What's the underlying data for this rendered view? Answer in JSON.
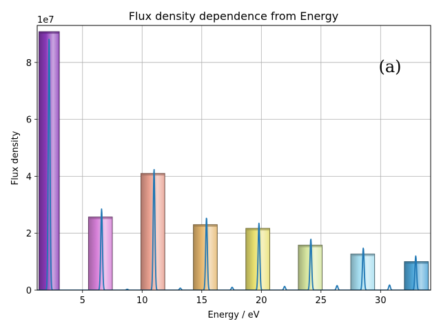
{
  "chart_data": {
    "type": "bar",
    "title": "Flux density dependence from Energy",
    "xlabel": "Energy / eV",
    "ylabel": "Flux density",
    "y_scale_label": "1e7",
    "panel_label": "(a)",
    "xlim": [
      1.2,
      34.2
    ],
    "ylim": [
      0,
      93000000
    ],
    "x_ticks": [
      5,
      10,
      15,
      20,
      25,
      30
    ],
    "x_tick_labels": [
      "5",
      "10",
      "15",
      "20",
      "25",
      "30"
    ],
    "y_ticks": [
      0,
      20000000,
      40000000,
      60000000,
      80000000
    ],
    "y_tick_labels": [
      "0",
      "2",
      "4",
      "6",
      "8"
    ],
    "grid": true,
    "bars": [
      {
        "x": 2.2,
        "value": 90800000,
        "width": 1.7,
        "color": "#8a3ab9"
      },
      {
        "x": 6.5,
        "value": 25700000,
        "width": 2.0,
        "color": "#d680d8"
      },
      {
        "x": 10.9,
        "value": 41000000,
        "width": 2.0,
        "color": "#e9a090"
      },
      {
        "x": 15.3,
        "value": 23000000,
        "width": 2.0,
        "color": "#e6b870"
      },
      {
        "x": 19.7,
        "value": 21700000,
        "width": 2.0,
        "color": "#e8e070"
      },
      {
        "x": 24.1,
        "value": 15800000,
        "width": 2.0,
        "color": "#d6e6a0"
      },
      {
        "x": 28.5,
        "value": 12700000,
        "width": 2.0,
        "color": "#a6def0"
      },
      {
        "x": 33.0,
        "value": 10000000,
        "width": 2.0,
        "color": "#4ea6d8"
      }
    ],
    "series": [
      {
        "line_color": "#1f77b4",
        "peaks": [
          {
            "x": 2.2,
            "y": 89000000
          },
          {
            "x": 6.6,
            "y": 28500000
          },
          {
            "x": 8.75,
            "y": 300000
          },
          {
            "x": 11.0,
            "y": 42500000
          },
          {
            "x": 13.2,
            "y": 700000
          },
          {
            "x": 15.4,
            "y": 25500000
          },
          {
            "x": 17.55,
            "y": 1000000
          },
          {
            "x": 19.8,
            "y": 23500000
          },
          {
            "x": 21.95,
            "y": 1300000
          },
          {
            "x": 24.15,
            "y": 18000000
          },
          {
            "x": 26.35,
            "y": 1600000
          },
          {
            "x": 28.55,
            "y": 14800000
          },
          {
            "x": 30.75,
            "y": 1800000
          },
          {
            "x": 32.95,
            "y": 12000000
          }
        ]
      }
    ]
  }
}
